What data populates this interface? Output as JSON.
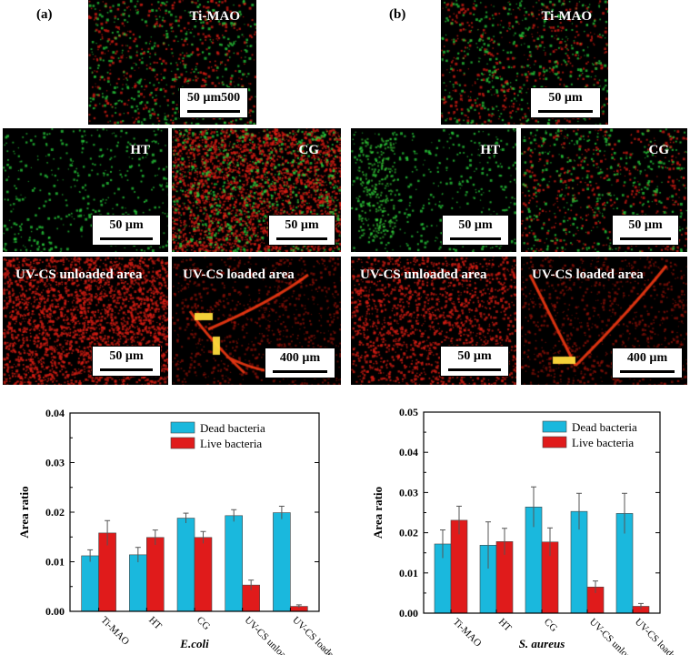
{
  "panels": {
    "a": "(a)",
    "b": "(b)"
  },
  "images": {
    "a": {
      "timao": {
        "title": "Ti-MAO",
        "scale": "50 µm500"
      },
      "ht": {
        "title": "HT",
        "scale": "50 µm"
      },
      "cg": {
        "title": "CG",
        "scale": "50 µm"
      },
      "unloaded": {
        "title": "UV-CS unloaded area",
        "scale": "50 µm"
      },
      "loaded": {
        "title": "UV-CS loaded area",
        "scale": "400 µm"
      }
    },
    "b": {
      "timao": {
        "title": "Ti-MAO",
        "scale": "50 µm"
      },
      "ht": {
        "title": "HT",
        "scale": "50 µm"
      },
      "cg": {
        "title": "CG",
        "scale": "50 µm"
      },
      "unloaded": {
        "title": "UV-CS unloaded area",
        "scale": "50 µm"
      },
      "loaded": {
        "title": "UV-CS loaded area",
        "scale": "400 µm"
      }
    }
  },
  "colors": {
    "dead": "#1ab8dd",
    "live": "#e01b1b"
  },
  "chart_data": [
    {
      "type": "bar",
      "xlabel": "E.coli",
      "ylabel": "Area ratio",
      "ylim": [
        0,
        0.04
      ],
      "yticks": [
        "0.00",
        "0.01",
        "0.02",
        "0.03",
        "0.04"
      ],
      "categories": [
        "Ti-MAO",
        "HT",
        "CG",
        "UV-CS unloaded area",
        "UV-CS loaded area"
      ],
      "series": [
        {
          "name": "Dead bacteria",
          "values": [
            0.0112,
            0.0114,
            0.0188,
            0.0193,
            0.0199
          ],
          "errors": [
            0.0012,
            0.0015,
            0.001,
            0.0012,
            0.0013
          ]
        },
        {
          "name": "Live bacteria",
          "values": [
            0.0158,
            0.0149,
            0.0149,
            0.0053,
            0.001
          ],
          "errors": [
            0.0025,
            0.0015,
            0.0012,
            0.001,
            0.0003
          ]
        }
      ],
      "legend": "top-center"
    },
    {
      "type": "bar",
      "xlabel": "S. aureus",
      "ylabel": "Area ratio",
      "ylim": [
        0,
        0.05
      ],
      "yticks": [
        "0.00",
        "0.01",
        "0.02",
        "0.03",
        "0.04",
        "0.05"
      ],
      "categories": [
        "Ti-MAO",
        "HT",
        "CG",
        "UV-CS unloaded area",
        "UV-CS loaded area"
      ],
      "series": [
        {
          "name": "Dead bacteria",
          "values": [
            0.0172,
            0.0169,
            0.0264,
            0.0253,
            0.0248
          ],
          "errors": [
            0.0035,
            0.0058,
            0.005,
            0.0045,
            0.005
          ]
        },
        {
          "name": "Live bacteria",
          "values": [
            0.0231,
            0.0178,
            0.0177,
            0.0065,
            0.0017
          ],
          "errors": [
            0.0035,
            0.0033,
            0.0035,
            0.0015,
            0.0007
          ]
        }
      ],
      "legend": "top-center"
    }
  ]
}
